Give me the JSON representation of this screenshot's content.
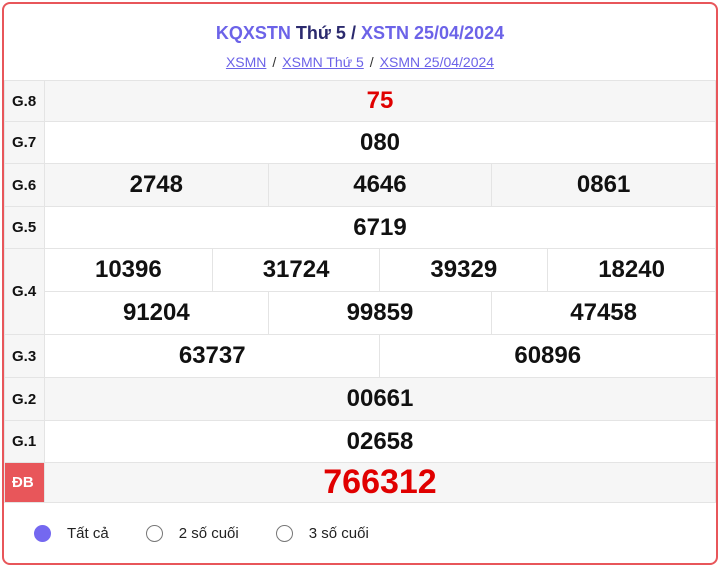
{
  "header": {
    "title_part1": "KQXSTN",
    "title_part2": "Thứ 5",
    "title_sep": "/",
    "title_part3": "XSTN 25/04/2024",
    "breadcrumbs": [
      {
        "label": "XSMN"
      },
      {
        "label": "XSMN Thứ 5"
      },
      {
        "label": "XSMN 25/04/2024"
      }
    ],
    "breadcrumb_sep": "/"
  },
  "prizes": [
    {
      "label": "G.8",
      "numbers": [
        "75"
      ]
    },
    {
      "label": "G.7",
      "numbers": [
        "080"
      ]
    },
    {
      "label": "G.6",
      "numbers": [
        "2748",
        "4646",
        "0861"
      ]
    },
    {
      "label": "G.5",
      "numbers": [
        "6719"
      ]
    },
    {
      "label": "G.4",
      "numbers": [
        "10396",
        "31724",
        "39329",
        "18240",
        "91204",
        "99859",
        "47458"
      ]
    },
    {
      "label": "G.3",
      "numbers": [
        "63737",
        "60896"
      ]
    },
    {
      "label": "G.2",
      "numbers": [
        "00661"
      ]
    },
    {
      "label": "G.1",
      "numbers": [
        "02658"
      ]
    },
    {
      "label": "ĐB",
      "numbers": [
        "766312"
      ]
    }
  ],
  "filter": {
    "options": [
      {
        "label": "Tất cả",
        "selected": true
      },
      {
        "label": "2 số cuối",
        "selected": false
      },
      {
        "label": "3 số cuối",
        "selected": false
      }
    ]
  },
  "colors": {
    "accent": "#6c63e8",
    "border": "#e8565a",
    "highlight": "#e00000"
  }
}
